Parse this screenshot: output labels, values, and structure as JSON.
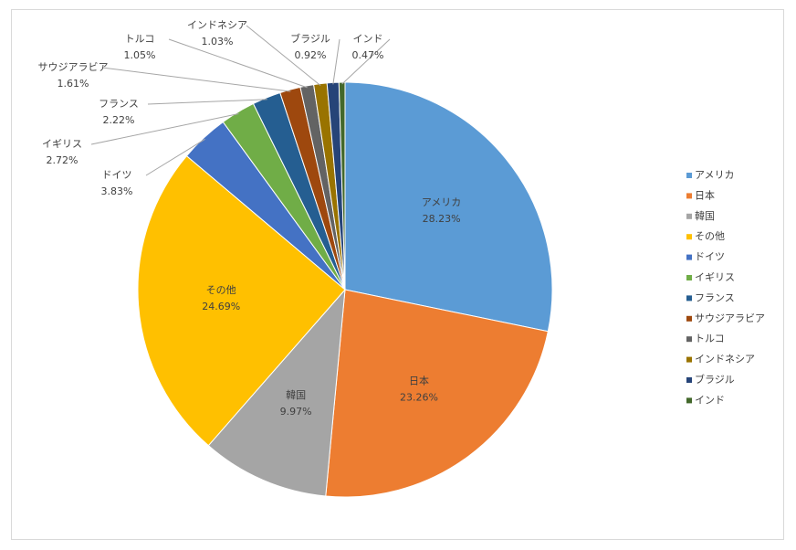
{
  "chart_data": {
    "type": "pie",
    "categories": [
      "アメリカ",
      "日本",
      "韓国",
      "その他",
      "ドイツ",
      "イギリス",
      "フランス",
      "サウジアラビア",
      "トルコ",
      "インドネシア",
      "ブラジル",
      "インド"
    ],
    "values": [
      28.23,
      23.26,
      9.97,
      24.69,
      3.83,
      2.72,
      2.22,
      1.61,
      1.05,
      1.03,
      0.92,
      0.47
    ],
    "value_labels": [
      "28.23%",
      "23.26%",
      "9.97%",
      "24.69%",
      "3.83%",
      "2.72%",
      "2.22%",
      "1.61%",
      "1.05%",
      "1.03%",
      "0.92%",
      "0.47%"
    ],
    "colors": [
      "#5b9bd5",
      "#ed7d31",
      "#a5a5a5",
      "#ffc000",
      "#4472c4",
      "#70ad47",
      "#255e91",
      "#9e480e",
      "#636363",
      "#997300",
      "#264478",
      "#43682b"
    ],
    "legend": "right"
  }
}
